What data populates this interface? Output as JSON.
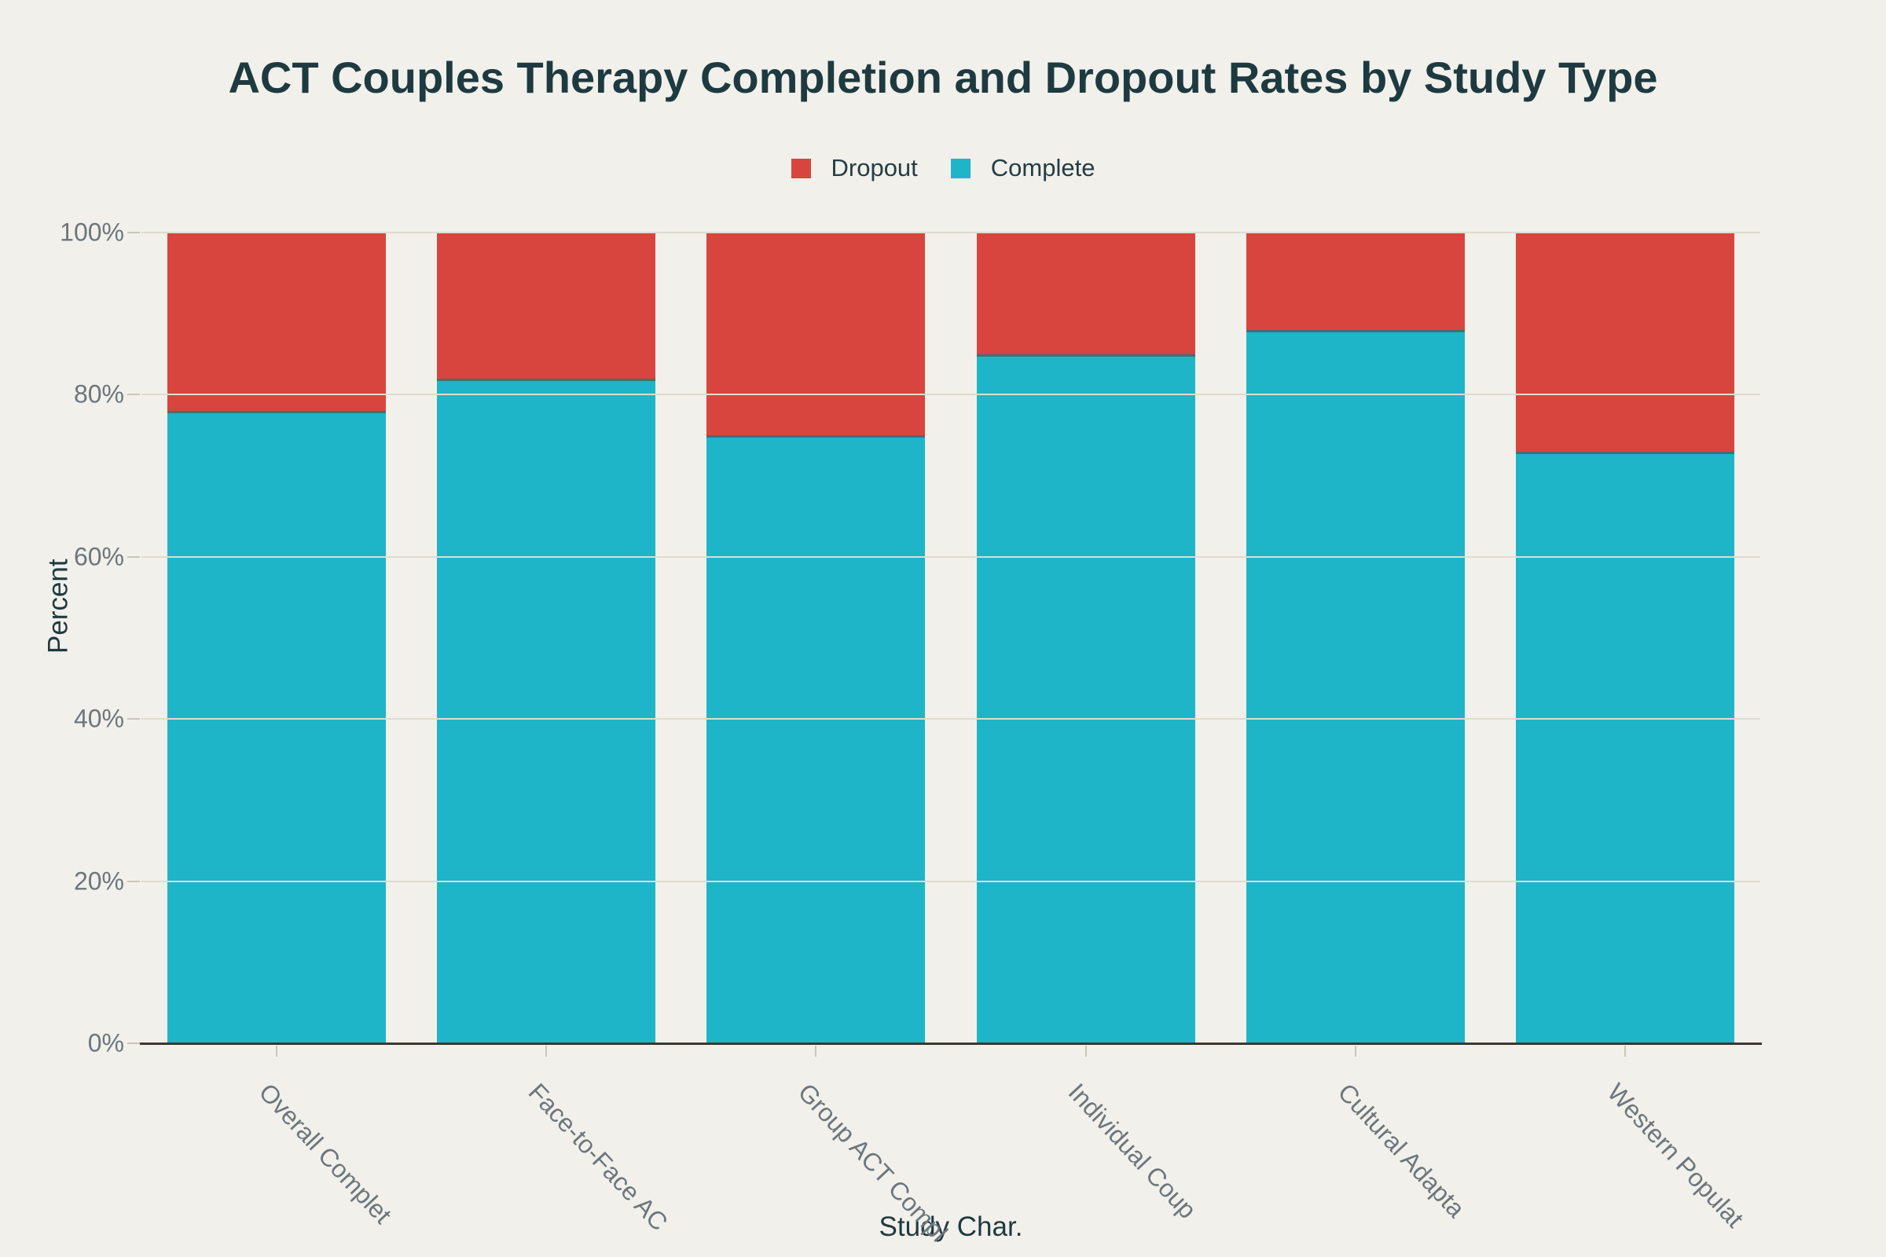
{
  "title": "ACT Couples Therapy Completion and Dropout Rates by Study Type",
  "legend": {
    "items": [
      {
        "label": "Dropout"
      },
      {
        "label": "Complete"
      }
    ]
  },
  "axes": {
    "x_title": "Study Char.",
    "y_title": "Percent",
    "y_tick_labels": [
      "0%",
      "20%",
      "40%",
      "60%",
      "80%",
      "100%"
    ]
  },
  "chart_data": {
    "type": "bar",
    "stacked": true,
    "title": "ACT Couples Therapy Completion and Dropout Rates by Study Type",
    "categories": [
      "Overall Complet",
      "Face-to-Face AC",
      "Group ACT Compl",
      "Individual Coup",
      "Cultural Adapta",
      "Western Populat"
    ],
    "series": [
      {
        "name": "Dropout",
        "color": "#d8453f",
        "values": [
          22,
          18,
          25,
          15,
          12,
          27
        ]
      },
      {
        "name": "Complete",
        "color": "#1fb5c8",
        "values": [
          78,
          82,
          75,
          85,
          88,
          73
        ]
      }
    ],
    "xlabel": "Study Char.",
    "ylabel": "Percent",
    "ylim": [
      0,
      100
    ],
    "y_tick_values": [
      0,
      20,
      40,
      60,
      80,
      100
    ],
    "grid": true,
    "legend_position": "top-center"
  },
  "colors": {
    "background": "#f1f0ea",
    "dropout": "#d8453f",
    "complete": "#1fb5c8",
    "title_text": "#1e3a41",
    "tick_text": "#6d767d",
    "grid_line": "#dedcd2",
    "axis_line": "#3b382e",
    "tick_mark": "#c9c6bb"
  }
}
